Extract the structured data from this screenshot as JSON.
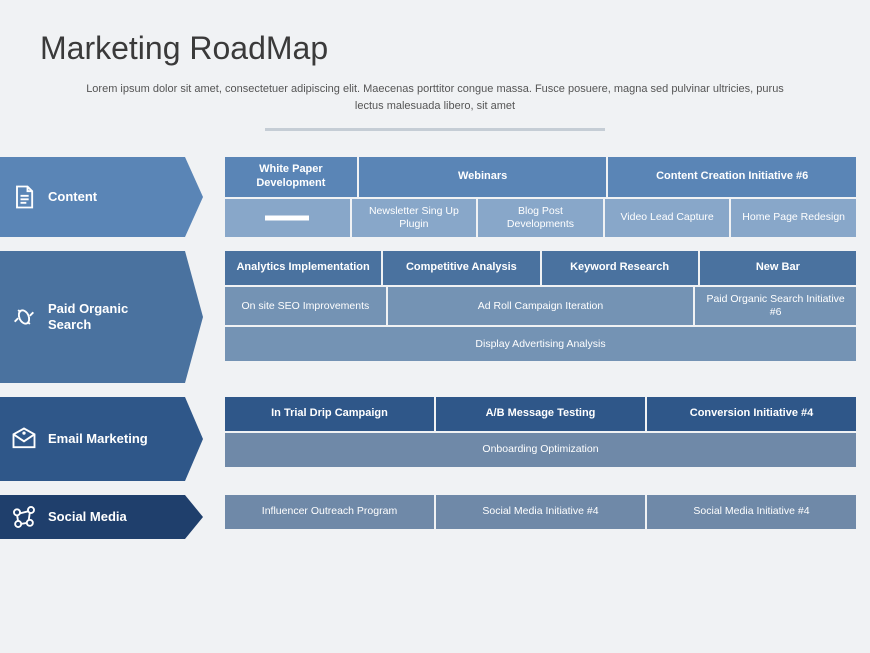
{
  "title": "Marketing RoadMap",
  "subtitle": "Lorem ipsum dolor sit amet, consectetuer adipiscing elit. Maecenas porttitor congue massa. Fusce posuere, magna sed pulvinar ultricies, purus lectus malesuada libero, sit amet",
  "colors": {
    "title_text": "#3a3a3a",
    "subtitle_text": "#555555",
    "divider": "#c5cdd5",
    "page_bg": "#f0f2f4"
  },
  "lanes": [
    {
      "name": "Content",
      "label_bg": "#5a85b6",
      "height": 80,
      "rows": [
        {
          "type": "header",
          "bg": "#5a85b6",
          "cells": [
            {
              "text": "White Paper Development",
              "span": 1
            },
            {
              "text": "Webinars",
              "span": 2
            },
            {
              "text": "Content Creation Initiative #6",
              "span": 2
            }
          ]
        },
        {
          "type": "sub",
          "bg": "#88a7c9",
          "cells": [
            {
              "progress": true,
              "progress_width": 44,
              "span": 1
            },
            {
              "text": "Newsletter Sing Up Plugin",
              "span": 1
            },
            {
              "text": "Blog Post Developments",
              "span": 1
            },
            {
              "text": "Video Lead Capture",
              "span": 1
            },
            {
              "text": "Home Page Redesign",
              "span": 1
            }
          ]
        }
      ]
    },
    {
      "name": "Paid Organic Search",
      "label_bg": "#4a729f",
      "height": 132,
      "rows": [
        {
          "type": "header",
          "bg": "#4a729f",
          "cells": [
            {
              "text": "Analytics Implementation",
              "span": 1
            },
            {
              "text": "Competitive Analysis",
              "span": 1
            },
            {
              "text": "Keyword Research",
              "span": 1
            },
            {
              "text": "New Bar",
              "span": 1
            }
          ]
        },
        {
          "type": "sub",
          "bg": "#7493b4",
          "cells": [
            {
              "text": "On site SEO Improvements",
              "span": 1
            },
            {
              "text": "Ad Roll Campaign Iteration",
              "span": 2
            },
            {
              "text": "Paid Organic Search Initiative #6",
              "span": 1
            }
          ]
        },
        {
          "type": "sub",
          "bg": "#7493b4",
          "cells": [
            {
              "text": "Display Advertising Analysis",
              "span": 4
            }
          ]
        }
      ]
    },
    {
      "name": "Email Marketing",
      "label_bg": "#2f5789",
      "height": 84,
      "rows": [
        {
          "type": "header",
          "bg": "#2f5789",
          "cells": [
            {
              "text": "In Trial Drip Campaign",
              "span": 1
            },
            {
              "text": "A/B Message Testing",
              "span": 1
            },
            {
              "text": "Conversion Initiative #4",
              "span": 1
            }
          ]
        },
        {
          "type": "sub",
          "bg": "#6f89a8",
          "cells": [
            {
              "text": "Onboarding Optimization",
              "span": 3
            }
          ]
        }
      ]
    },
    {
      "name": "Social Media",
      "label_bg": "#1f3f6c",
      "height": 44,
      "rows": [
        {
          "type": "sub",
          "bg": "#6f89a8",
          "cells": [
            {
              "text": "Influencer Outreach Program",
              "span": 1
            },
            {
              "text": "Social Media Initiative #4",
              "span": 1
            },
            {
              "text": "Social Media Initiative #4",
              "span": 1
            }
          ]
        }
      ]
    }
  ]
}
